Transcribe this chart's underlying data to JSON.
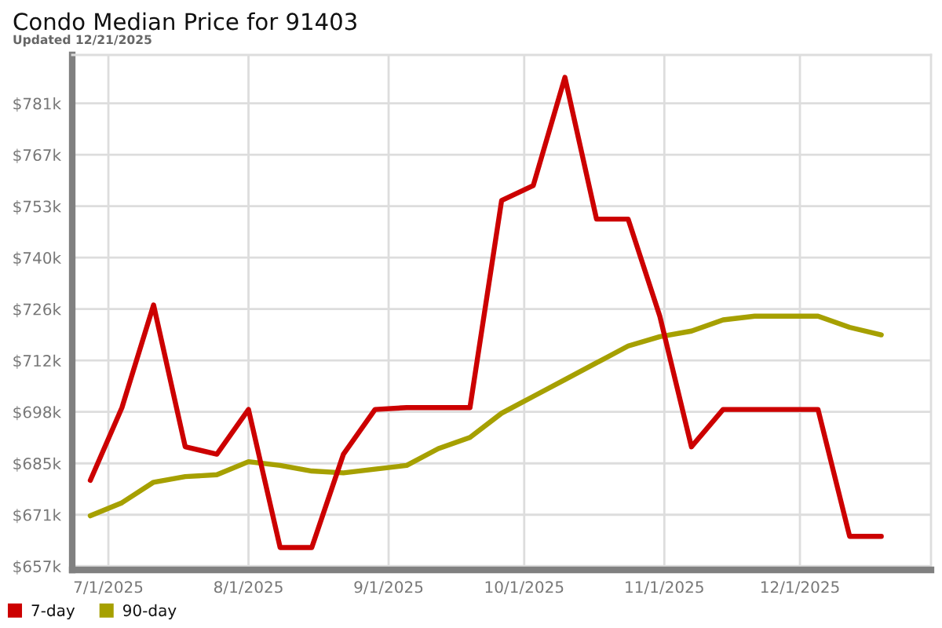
{
  "chart_data": {
    "type": "line",
    "title": "Condo Median Price for 91403",
    "subtitle": "Updated 12/21/2025",
    "x": [
      "2025-06-27",
      "2025-07-04",
      "2025-07-11",
      "2025-07-18",
      "2025-07-25",
      "2025-08-01",
      "2025-08-08",
      "2025-08-15",
      "2025-08-22",
      "2025-08-29",
      "2025-09-05",
      "2025-09-12",
      "2025-09-19",
      "2025-09-26",
      "2025-10-03",
      "2025-10-10",
      "2025-10-17",
      "2025-10-24",
      "2025-10-31",
      "2025-11-07",
      "2025-11-14",
      "2025-11-21",
      "2025-11-28",
      "2025-12-05",
      "2025-12-12",
      "2025-12-19"
    ],
    "series": [
      {
        "name": "7-day",
        "color": "#cc0000",
        "values": [
          680,
          699.5,
          727,
          689,
          687,
          699,
          662,
          662,
          687,
          699,
          699.5,
          699.5,
          699.5,
          755,
          759,
          788,
          750,
          750,
          724,
          689,
          699,
          699,
          699,
          699,
          665,
          665
        ]
      },
      {
        "name": "90-day",
        "color": "#a6a000",
        "values": [
          670.5,
          674,
          679.5,
          681,
          681.5,
          685,
          684,
          682.5,
          682,
          683,
          684,
          688.5,
          691.5,
          698,
          702.5,
          707,
          711.5,
          716,
          718.5,
          720,
          723,
          724,
          724,
          724,
          721,
          719
        ]
      }
    ],
    "xlim": [
      "2025-06-23",
      "2025-12-30"
    ],
    "xticks": [
      {
        "value": "2025-07-01",
        "label": "7/1/2025"
      },
      {
        "value": "2025-08-01",
        "label": "8/1/2025"
      },
      {
        "value": "2025-09-01",
        "label": "9/1/2025"
      },
      {
        "value": "2025-10-01",
        "label": "10/1/2025"
      },
      {
        "value": "2025-11-01",
        "label": "11/1/2025"
      },
      {
        "value": "2025-12-01",
        "label": "12/1/2025"
      }
    ],
    "ylim": [
      656,
      794
    ],
    "yticks": [
      {
        "value": 657,
        "label": "$657k"
      },
      {
        "value": 670.78,
        "label": "$671k"
      },
      {
        "value": 684.56,
        "label": "$685k"
      },
      {
        "value": 698.34,
        "label": "$698k"
      },
      {
        "value": 712.12,
        "label": "$712k"
      },
      {
        "value": 725.9,
        "label": "$726k"
      },
      {
        "value": 739.68,
        "label": "$740k"
      },
      {
        "value": 753.46,
        "label": "$753k"
      },
      {
        "value": 767.24,
        "label": "$767k"
      },
      {
        "value": 781.02,
        "label": "$781k"
      }
    ],
    "grid": true,
    "legend": "bottom left"
  }
}
